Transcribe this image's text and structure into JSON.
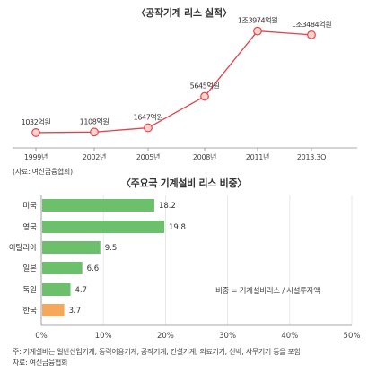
{
  "charts": {
    "line": {
      "title": "〈공작기계 리스 실적〉",
      "source": "(자료: 여신금융협회)",
      "chart_data": {
        "type": "line",
        "categories": [
          "1999년",
          "2002년",
          "2005년",
          "2008년",
          "2011년",
          "2013,3Q"
        ],
        "values": [
          1032,
          1108,
          1647,
          5645,
          13974,
          13484
        ],
        "value_labels": [
          "1032억원",
          "1108억원",
          "1647억원",
          "5645억원",
          "1조3974억원",
          "1조3484억원"
        ],
        "line_color": "#e0454b",
        "marker_fill": "#fbd2cc"
      }
    },
    "bar": {
      "title": "〈주요국 기계설비 리스 비중〉",
      "annotation": "비중 = 기계설비리스 / 시설투자액",
      "note": "주: 기계설비는 일반산업기계, 동력이용기계, 공작기계, 건설기계, 의료기기, 선박, 사무기기 등을 포함",
      "source": "자료: 여신금융협회",
      "chart_data": {
        "type": "bar",
        "orientation": "horizontal",
        "categories": [
          "미국",
          "영국",
          "이탈리아",
          "일본",
          "독일",
          "한국"
        ],
        "values": [
          18.2,
          19.8,
          9.5,
          6.6,
          4.7,
          3.7
        ],
        "value_labels": [
          "18.2",
          "19.8",
          "9.5",
          "6.6",
          "4.7",
          "3.7"
        ],
        "xlim": [
          0,
          50
        ],
        "xticks": [
          "0%",
          "10%",
          "20%",
          "30%",
          "40%",
          "50%"
        ],
        "grid": true,
        "bar_color": "#6cc06c",
        "highlight_color": "#f5a85a",
        "highlight_category": "한국"
      }
    }
  }
}
